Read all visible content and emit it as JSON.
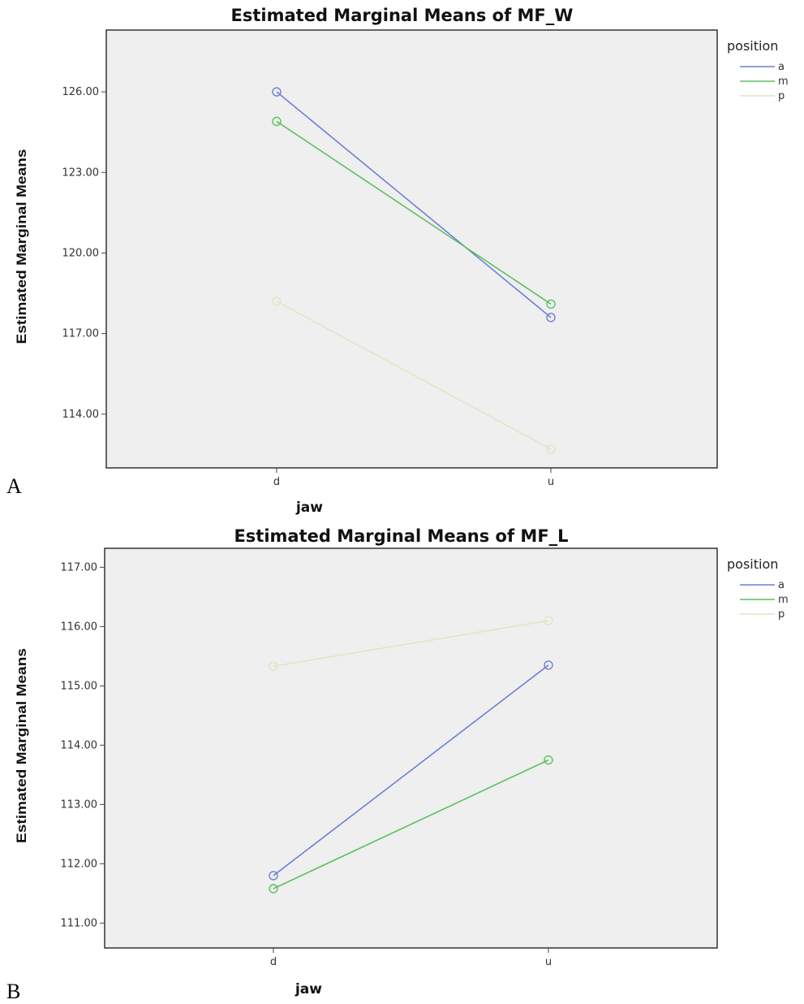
{
  "chart_data": [
    {
      "type": "line",
      "panel_label": "A",
      "title": "Estimated Marginal Means of MF_W",
      "xlabel": "jaw",
      "ylabel": "Estimated Marginal Means",
      "categories": [
        "d",
        "u"
      ],
      "yticks": [
        "114.00",
        "117.00",
        "120.00",
        "123.00",
        "126.00"
      ],
      "ylim": [
        112.0,
        128.3
      ],
      "legend_title": "position",
      "legend_position": "top-right",
      "series": [
        {
          "name": "a",
          "color": "#6f7fd6",
          "values": [
            126.0,
            117.6
          ]
        },
        {
          "name": "m",
          "color": "#5cc060",
          "values": [
            124.9,
            118.1
          ]
        },
        {
          "name": "p",
          "color": "#e4e3c6",
          "values": [
            118.2,
            112.7
          ]
        }
      ]
    },
    {
      "type": "line",
      "panel_label": "B",
      "title": "Estimated Marginal Means of MF_L",
      "xlabel": "jaw",
      "ylabel": "Estimated Marginal Means",
      "categories": [
        "d",
        "u"
      ],
      "yticks": [
        "111.00",
        "112.00",
        "113.00",
        "114.00",
        "115.00",
        "116.00",
        "117.00"
      ],
      "ylim": [
        110.58,
        117.32
      ],
      "legend_title": "position",
      "legend_position": "top-right",
      "series": [
        {
          "name": "a",
          "color": "#6f7fd6",
          "values": [
            111.8,
            115.35
          ]
        },
        {
          "name": "m",
          "color": "#5cc060",
          "values": [
            111.58,
            113.75
          ]
        },
        {
          "name": "p",
          "color": "#e4e3c6",
          "values": [
            115.33,
            116.1
          ]
        }
      ]
    }
  ]
}
